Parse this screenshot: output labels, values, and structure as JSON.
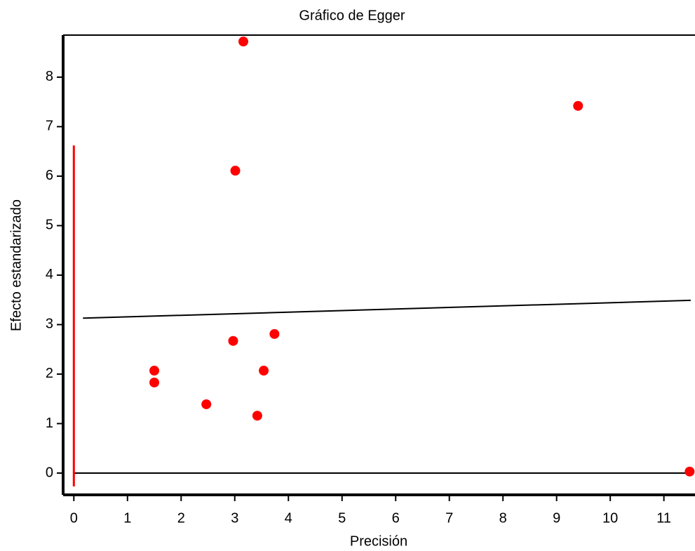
{
  "chart_data": {
    "type": "scatter",
    "title": "Gráfico de Egger",
    "x_label": "Precisión",
    "y_label": "Efecto estandarizado",
    "x": [
      3.16,
      9.4,
      3.01,
      3.74,
      2.97,
      3.54,
      1.5,
      1.5,
      2.47,
      3.42,
      11.48
    ],
    "values": [
      8.72,
      7.42,
      6.11,
      2.81,
      2.67,
      2.07,
      2.07,
      1.83,
      1.39,
      1.16,
      0.03
    ],
    "color": "#ff0000",
    "regression_line": {
      "x": [
        0.17,
        11.5
      ],
      "values": [
        3.13,
        3.49
      ],
      "color": "#000000"
    },
    "intercept_interval": {
      "x": 0,
      "values": [
        -0.27,
        6.62
      ],
      "color": "#ff0000"
    },
    "reference_line": {
      "x": [
        0,
        11.5
      ],
      "values": [
        0,
        0
      ],
      "color": "#000000"
    },
    "xlim": [
      -0.2,
      11.58
    ],
    "ylim": [
      -0.44,
      8.85
    ],
    "xticks": [
      0,
      1,
      2,
      3,
      4,
      5,
      6,
      7,
      8,
      9,
      10,
      11
    ],
    "yticks": [
      0,
      1,
      2,
      3,
      4,
      5,
      6,
      7,
      8
    ]
  }
}
